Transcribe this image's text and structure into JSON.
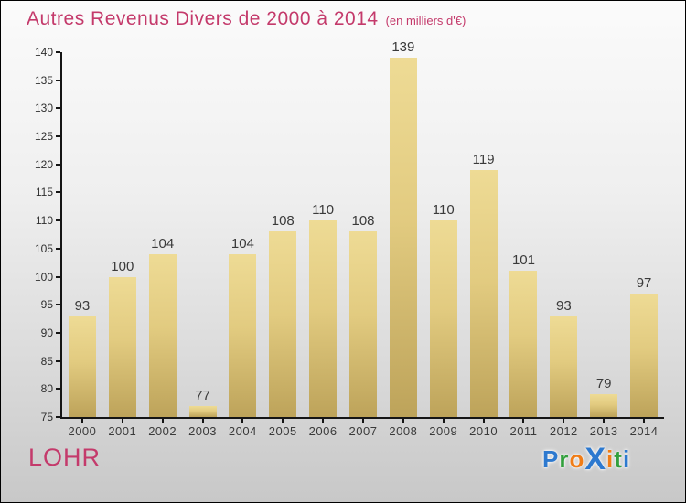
{
  "title": "Autres Revenus Divers de 2000 à 2014",
  "subtitle": "(en milliers d'€)",
  "footer": {
    "company": "LOHR"
  },
  "logo": {
    "word": "Proxiti",
    "letters": [
      {
        "char": "P",
        "color": "#2d79cf",
        "big": false
      },
      {
        "char": "r",
        "color": "#33a03d",
        "big": false
      },
      {
        "char": "o",
        "color": "#f07d17",
        "big": false
      },
      {
        "char": "X",
        "color": "#2d79cf",
        "big": true
      },
      {
        "char": "i",
        "color": "#f07d17",
        "big": false
      },
      {
        "char": "t",
        "color": "#33a03d",
        "big": false
      },
      {
        "char": "i",
        "color": "#2d79cf",
        "big": false
      }
    ]
  },
  "colors": {
    "accent_pink": "#c43a6b",
    "bar_top": "#eedb95",
    "bar_bottom": "#bda35a",
    "axis": "#151515",
    "label": "#3a3a3a"
  },
  "chart_data": {
    "type": "bar",
    "categories": [
      "2000",
      "2001",
      "2002",
      "2003",
      "2004",
      "2005",
      "2006",
      "2007",
      "2008",
      "2009",
      "2010",
      "2011",
      "2012",
      "2013",
      "2014"
    ],
    "values": [
      93,
      100,
      104,
      77,
      104,
      108,
      110,
      108,
      139,
      110,
      119,
      101,
      93,
      79,
      97
    ],
    "title": "Autres Revenus Divers de 2000 à 2014",
    "subtitle": "(en milliers d'€)",
    "xlabel": "",
    "ylabel": "",
    "ylim": [
      75,
      140
    ],
    "ytick_step": 5,
    "grid": false,
    "legend": null,
    "bar_label_position": "above"
  }
}
